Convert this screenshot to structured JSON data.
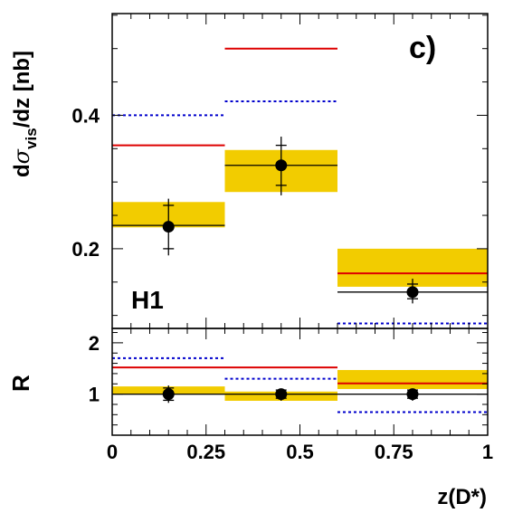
{
  "chart_data": [
    {
      "type": "step",
      "panel_label": "c)",
      "experiment_label": "H1",
      "ylabel_main": "d",
      "ylabel_sigma": "σ",
      "ylabel_sub": "vis",
      "ylabel_rest": "/dz [nb]",
      "ylim": [
        0.0805,
        0.5525
      ],
      "yticks": [
        0.2,
        0.4
      ],
      "ytick_labels": [
        "0.2",
        "0.4"
      ],
      "bin_edges": [
        0,
        0.3,
        0.6,
        1
      ],
      "data": {
        "x": [
          0.15,
          0.45,
          0.8
        ],
        "y": [
          0.233,
          0.325,
          0.135
        ],
        "stat_low": [
          0.2,
          0.295,
          0.125
        ],
        "stat_high": [
          0.265,
          0.355,
          0.147
        ],
        "tot_low": [
          0.19,
          0.28,
          0.118
        ],
        "tot_high": [
          0.275,
          0.368,
          0.155
        ]
      },
      "series": [
        {
          "style": "black-solid",
          "color": "#000000",
          "values": [
            0.235,
            0.325,
            0.135
          ]
        },
        {
          "style": "red-solid",
          "color": "#dd0000",
          "values": [
            0.355,
            0.5,
            0.163
          ]
        },
        {
          "style": "blue-dotted",
          "color": "#0000cc",
          "values": [
            0.4,
            0.421,
            0.088
          ]
        }
      ],
      "band": {
        "color": "#f2cc00",
        "low": [
          0.232,
          0.285,
          0.143
        ],
        "high": [
          0.27,
          0.348,
          0.2
        ]
      }
    },
    {
      "type": "step",
      "ylabel": "R",
      "xlabel": "z(D*)",
      "xlim": [
        0,
        1
      ],
      "xticks": [
        0,
        0.25,
        0.5,
        0.75,
        1
      ],
      "xtick_labels": [
        "0",
        "0.25",
        "0.5",
        "0.75",
        "1"
      ],
      "ylim": [
        0.2,
        2.28
      ],
      "yticks": [
        1,
        2
      ],
      "ytick_labels": [
        "1",
        "2"
      ],
      "bin_edges": [
        0,
        0.3,
        0.6,
        1
      ],
      "data": {
        "x": [
          0.15,
          0.45,
          0.8
        ],
        "y": [
          1.0,
          1.0,
          1.0
        ],
        "stat_low": [
          0.88,
          0.92,
          0.92
        ],
        "stat_high": [
          1.12,
          1.08,
          1.08
        ],
        "tot_low": [
          0.83,
          0.87,
          0.87
        ],
        "tot_high": [
          1.17,
          1.1,
          1.1
        ]
      },
      "series": [
        {
          "style": "black-solid",
          "color": "#000000",
          "values": [
            1.0,
            1.0,
            1.0
          ]
        },
        {
          "style": "red-solid",
          "color": "#dd0000",
          "values": [
            1.52,
            1.52,
            1.21
          ]
        },
        {
          "style": "blue-dotted",
          "color": "#0000cc",
          "values": [
            1.7,
            1.3,
            0.65
          ]
        }
      ],
      "band": {
        "color": "#f2cc00",
        "low": [
          0.99,
          0.87,
          1.1
        ],
        "high": [
          1.15,
          1.05,
          1.47
        ]
      }
    }
  ]
}
